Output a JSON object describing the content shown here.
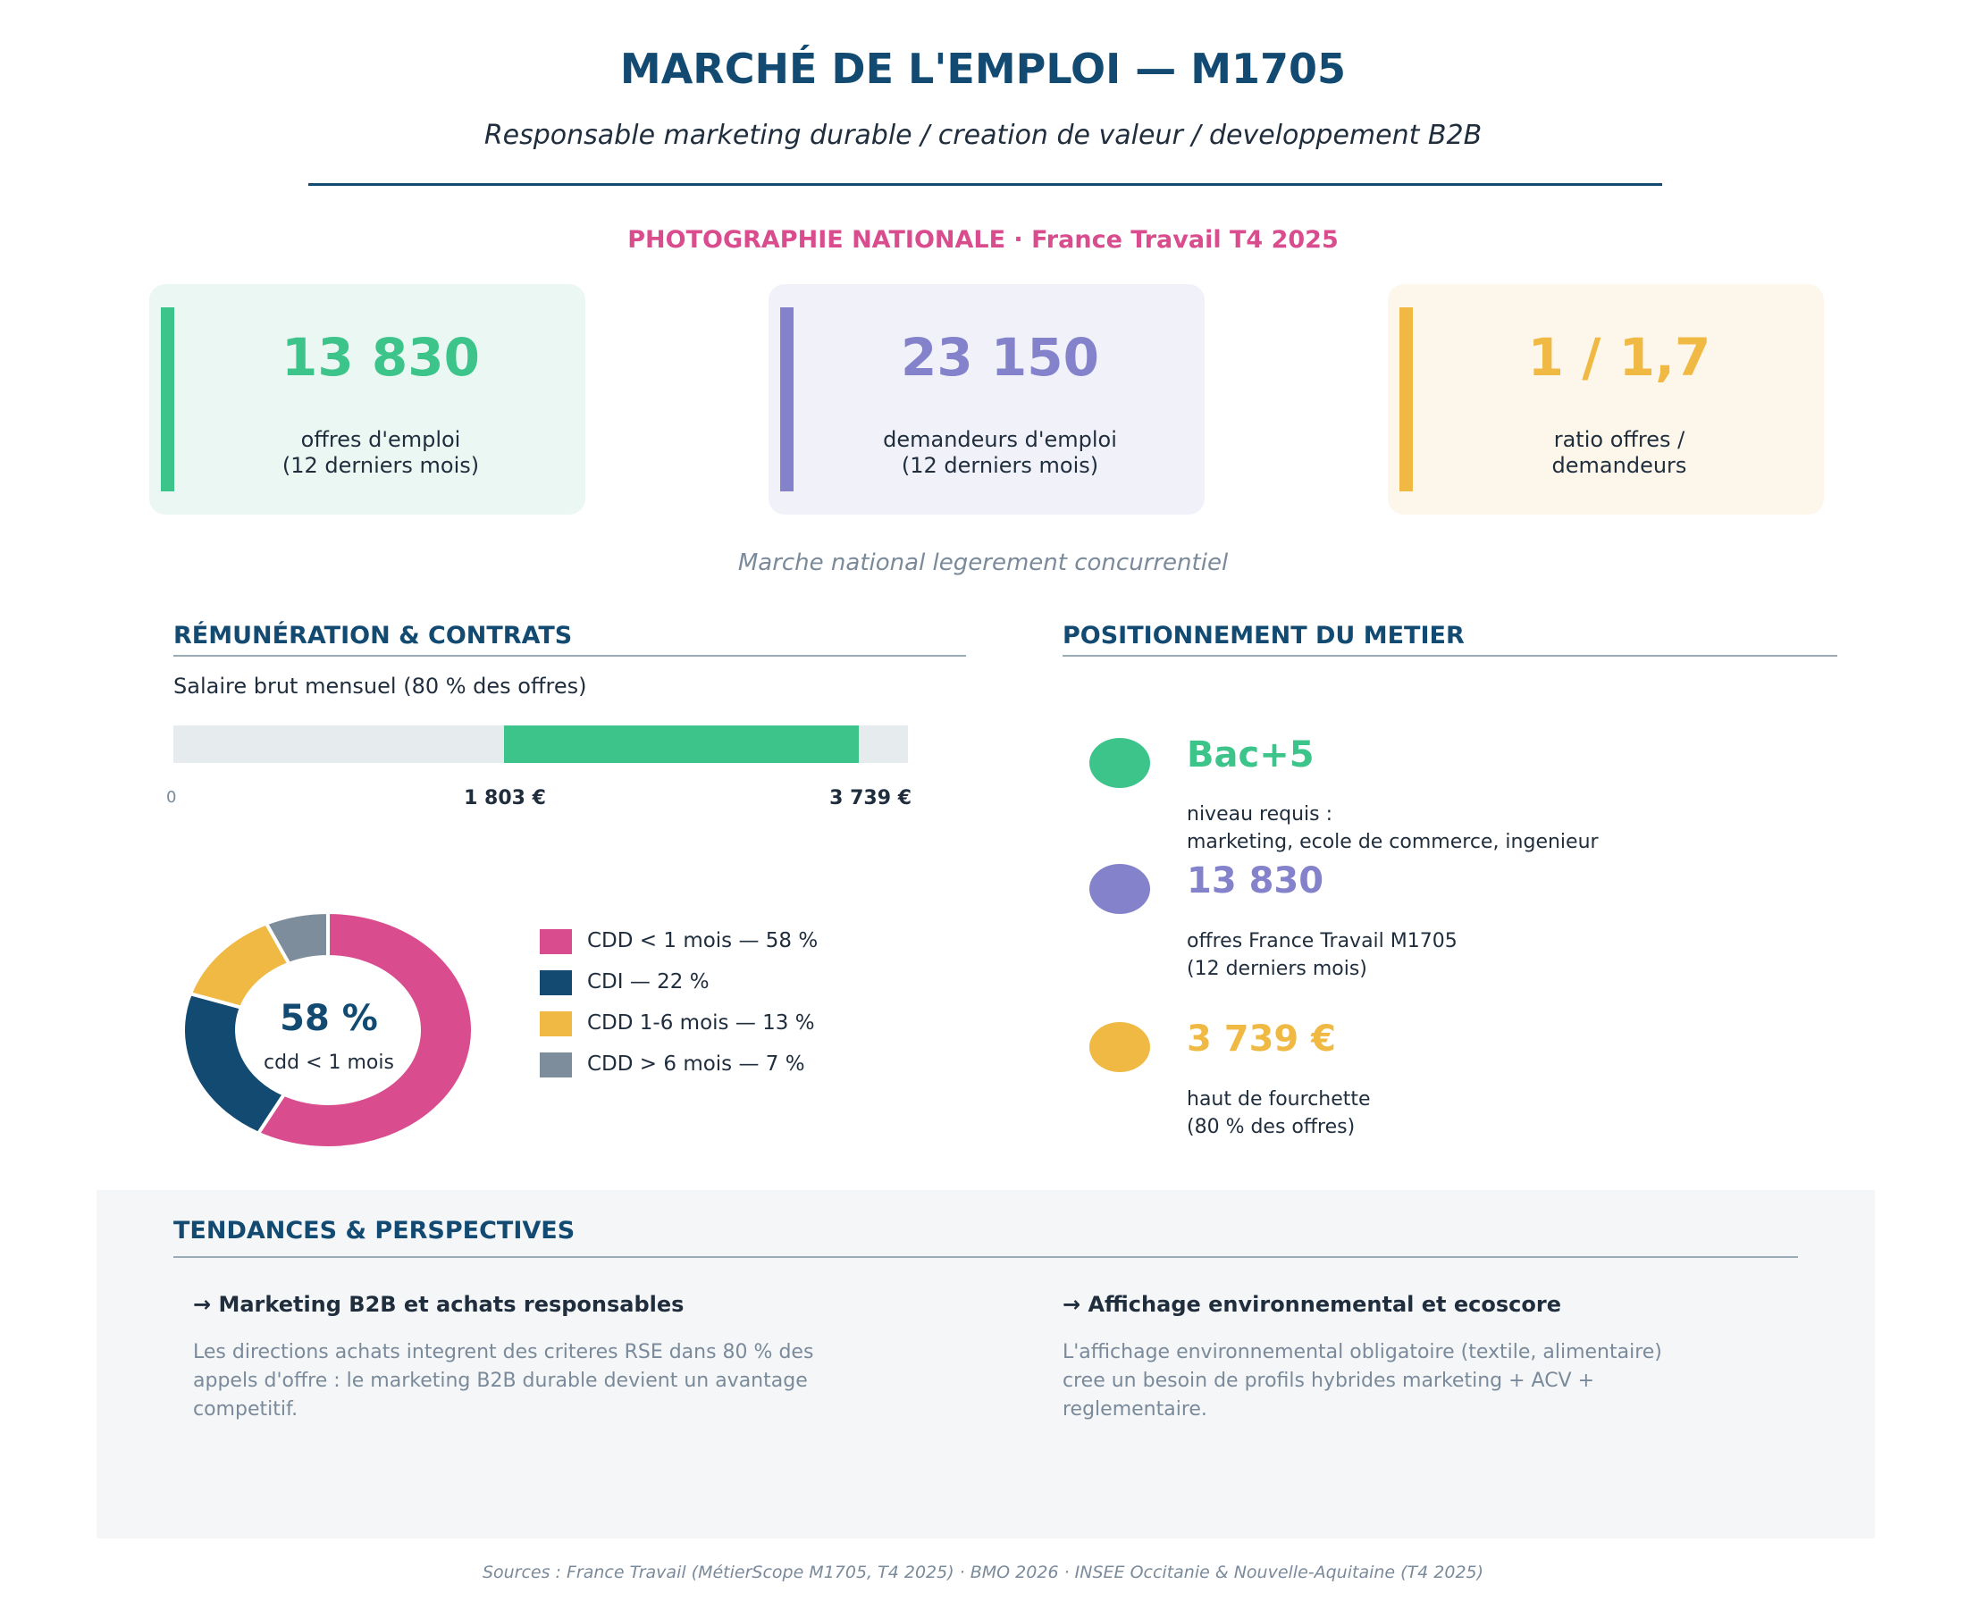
{
  "header": {
    "title": "MARCHÉ DE L'EMPLOI — M1705",
    "subtitle": "Responsable marketing durable / creation de valeur / developpement B2B"
  },
  "national": {
    "heading": "PHOTOGRAPHIE NATIONALE  ·  France Travail T4 2025",
    "note": "Marche national legerement concurrentiel"
  },
  "kpis": [
    {
      "value": "13 830",
      "label_line1": "offres d'emploi",
      "label_line2": "(12 derniers mois)",
      "color": "#3cc48b",
      "bg": "#ebf7f2"
    },
    {
      "value": "23 150",
      "label_line1": "demandeurs d'emploi",
      "label_line2": "(12 derniers mois)",
      "color": "#8482cb",
      "bg": "#f0f1f9"
    },
    {
      "value": "1 / 1,7",
      "label_line1": "ratio offres /",
      "label_line2": "demandeurs",
      "color": "#f0b944",
      "bg": "#fdf7eb"
    }
  ],
  "remuneration": {
    "title": "RÉMUNÉRATION & CONTRATS",
    "salary_label": "Salaire brut mensuel (80 % des offres)",
    "axis_zero": "0",
    "min_label": "1 803 €",
    "max_label": "3 739 €",
    "min_value": 1803,
    "max_value": 3739
  },
  "contracts": {
    "center_value": "58 %",
    "center_label": "cdd < 1 mois",
    "slices": [
      {
        "label": "CDD < 1 mois — 58 %",
        "value": 58,
        "color": "#d94c8e"
      },
      {
        "label": "CDI — 22 %",
        "value": 22,
        "color": "#124a72"
      },
      {
        "label": "CDD 1-6 mois — 13 %",
        "value": 13,
        "color": "#f0b944"
      },
      {
        "label": "CDD > 6 mois — 7 %",
        "value": 7,
        "color": "#7d8d9b"
      }
    ]
  },
  "positioning": {
    "title": "POSITIONNEMENT DU METIER",
    "items": [
      {
        "value": "Bac+5",
        "line1": "niveau requis :",
        "line2": "marketing, ecole de commerce, ingenieur",
        "color": "#3cc48b"
      },
      {
        "value": "13 830",
        "line1": "offres France Travail M1705",
        "line2": "(12 derniers mois)",
        "color": "#8482cb"
      },
      {
        "value": "3 739 €",
        "line1": "haut de fourchette",
        "line2": "(80 % des offres)",
        "color": "#f0b944"
      }
    ]
  },
  "trends": {
    "title": "TENDANCES & PERSPECTIVES",
    "items": [
      {
        "heading": "→ Marketing B2B et achats responsables",
        "body": "Les directions achats integrent des criteres RSE dans 80 % des appels d'offre : le marketing B2B durable devient un avantage competitif."
      },
      {
        "heading": "→ Affichage environnemental et ecoscore",
        "body": "L'affichage environnemental obligatoire (textile, alimentaire) cree un besoin de profils hybrides marketing + ACV + reglementaire."
      }
    ]
  },
  "footer": {
    "sources": "Sources : France Travail (MétierScope M1705, T4 2025) · BMO 2026 · INSEE Occitanie & Nouvelle-Aquitaine (T4 2025)"
  }
}
